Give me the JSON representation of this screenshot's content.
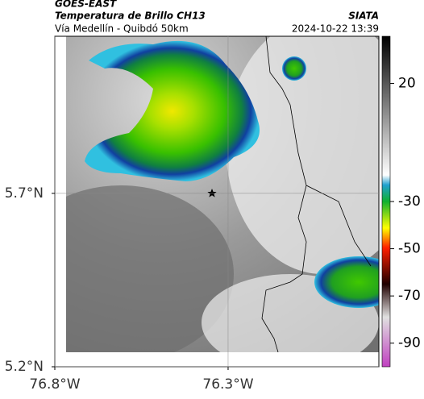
{
  "header": {
    "title": "GOES-EAST",
    "subtitle": "Temperatura de Brillo CH13",
    "region": "Vía Medellín - Quibdó 50km",
    "agency": "SIATA",
    "timestamp": "2024-10-22 13:39"
  },
  "map": {
    "xlim": [
      -76.8,
      -75.865
    ],
    "ylim": [
      5.2,
      6.153
    ],
    "xticks": [
      {
        "value": -76.8,
        "label": "76.8°W"
      },
      {
        "value": -76.3,
        "label": "76.3°W"
      }
    ],
    "yticks": [
      {
        "value": 5.7,
        "label": "5.7°N"
      },
      {
        "value": 5.2,
        "label": "5.2°N"
      }
    ]
  },
  "colorbar": {
    "lim": [
      -100,
      40
    ],
    "ticks": [
      20,
      -30,
      -50,
      -70,
      -90
    ]
  }
}
